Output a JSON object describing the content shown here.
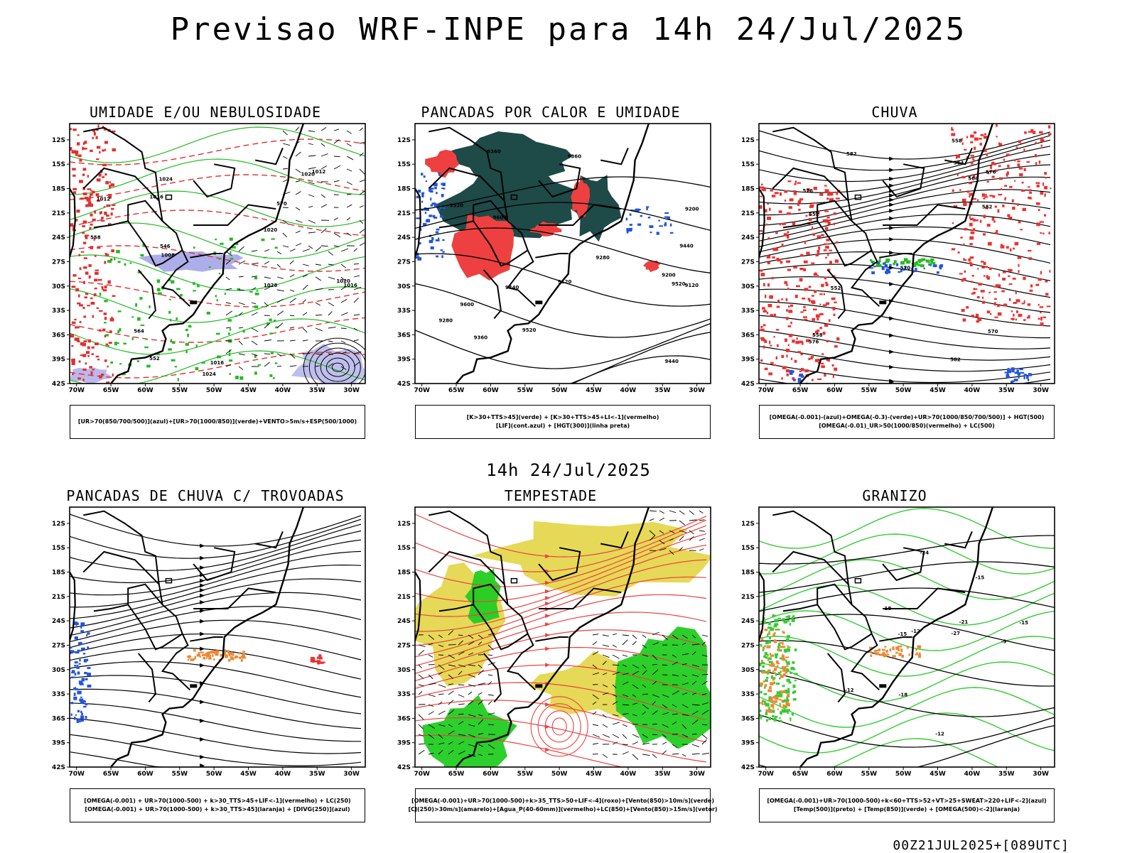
{
  "header": {
    "title": "Previsao WRF-INPE  para 14h 24/Jul/2025"
  },
  "middle": {
    "date": "14h 24/Jul/2025"
  },
  "footer": {
    "run_code": "00Z21JUL2025+[089UTC]"
  },
  "axes": {
    "lat_labels": [
      "12S",
      "15S",
      "18S",
      "21S",
      "24S",
      "27S",
      "30S",
      "33S",
      "36S",
      "39S",
      "42S"
    ],
    "lon_labels": [
      "70W",
      "65W",
      "60W",
      "55W",
      "50W",
      "45W",
      "40W",
      "35W",
      "30W"
    ]
  },
  "panels": [
    {
      "title": "UMIDADE E/OU NEBULOSIDADE",
      "legend": [
        "[UR>70(850/700/500)](azul)+[UR>70(1000/850)](verde)+VENTO>5m/s+ESP(500/1000)"
      ],
      "contour_labels": [
        "1012",
        "1016",
        "1020",
        "1016",
        "1020",
        "1024",
        "1028",
        "1008",
        "1012",
        "1016",
        "1020",
        "1024",
        "570",
        "564",
        "558",
        "552",
        "546"
      ],
      "colors": {
        "fill": "#8a8ae0",
        "contour_a": "#22bb22",
        "contour_b": "#e03030"
      }
    },
    {
      "title": "PANCADAS POR CALOR E UMIDADE",
      "legend": [
        "[K>30+TTS>45](verde) + [K>30+TTS>45+LI<-1](vermelho)",
        "[LIF](cont.azul) + [HGT(300)](linha preta)"
      ],
      "contour_labels": [
        "9600",
        "9600",
        "9520",
        "9520",
        "9520",
        "9440",
        "9440",
        "9440",
        "9360",
        "9360",
        "9360",
        "9280",
        "9280",
        "9200",
        "9200",
        "9120",
        "9120"
      ],
      "colors": {
        "fill": "#1e4a48",
        "fill_b": "#ee4040",
        "contour_a": "#2255dd"
      }
    },
    {
      "title": "CHUVA",
      "legend": [
        "[OMEGA(-0.001)-(azul)+OMEGA(-0.3)-(verde)+UR>70(1000/850/700/500)] + HGT(500)",
        "[OMEGA(-0.01)_UR>50(1000/850)(vermelho) + LC(500)"
      ],
      "contour_labels": [
        "582",
        "582",
        "582",
        "576",
        "576",
        "576",
        "570",
        "570",
        "564",
        "564",
        "558",
        "558",
        "552",
        "552"
      ],
      "colors": {
        "fill": "#ee3030",
        "fill_b": "#22bb22",
        "fill_c": "#2255dd"
      }
    },
    {
      "title": "PANCADAS DE CHUVA C/ TROVOADAS",
      "legend": [
        "[OMEGA(-0.001) + UR>70(1000-500) + k>30_TTS>45+LIF<-1](vermelho) + LC(250)",
        "[OMEGA(-0.001) + UR>70(1000-500) + k>30_TTS>45](laranja) + [DIVG(250)](azul)"
      ],
      "contour_labels": [],
      "colors": {
        "fill": "#ee8833",
        "fill_b": "#2255dd",
        "fill_c": "#ee3030"
      }
    },
    {
      "title": "TEMPESTADE",
      "legend": [
        "[OMEGA(-0.001)+UR>70(1000-500)+k>35_TTS>50+LIF<-4](roxo)+[Vento(850)>10m/s](verde)",
        "[CJ(250)>30m/s](amarelo)+[Agua_P(40-60mm)](vermelho)+LC(850)+[Vento(850)>15m/s](vetor)"
      ],
      "contour_labels": [],
      "colors": {
        "fill": "#e0d23a",
        "fill_b": "#22cc22",
        "contour_a": "#ee4040"
      }
    },
    {
      "title": "GRANIZO",
      "legend": [
        "[OMEGA(-0.001)+UR>70(1000-500)+k<60+TTS>52+VT>25+SWEAT>220+LIF<-2](azul)",
        "[Temp(500)](preto) + [Temp(850)](verde) + [OMEGA(500)<-2](laranja)"
      ],
      "contour_labels": [
        "-9",
        "-12",
        "-12",
        "-12",
        "-15",
        "-15",
        "-15",
        "-18",
        "-18",
        "-21",
        "-24",
        "-27"
      ],
      "colors": {
        "contour_a": "#33cc33",
        "fill": "#ee8833"
      }
    }
  ]
}
